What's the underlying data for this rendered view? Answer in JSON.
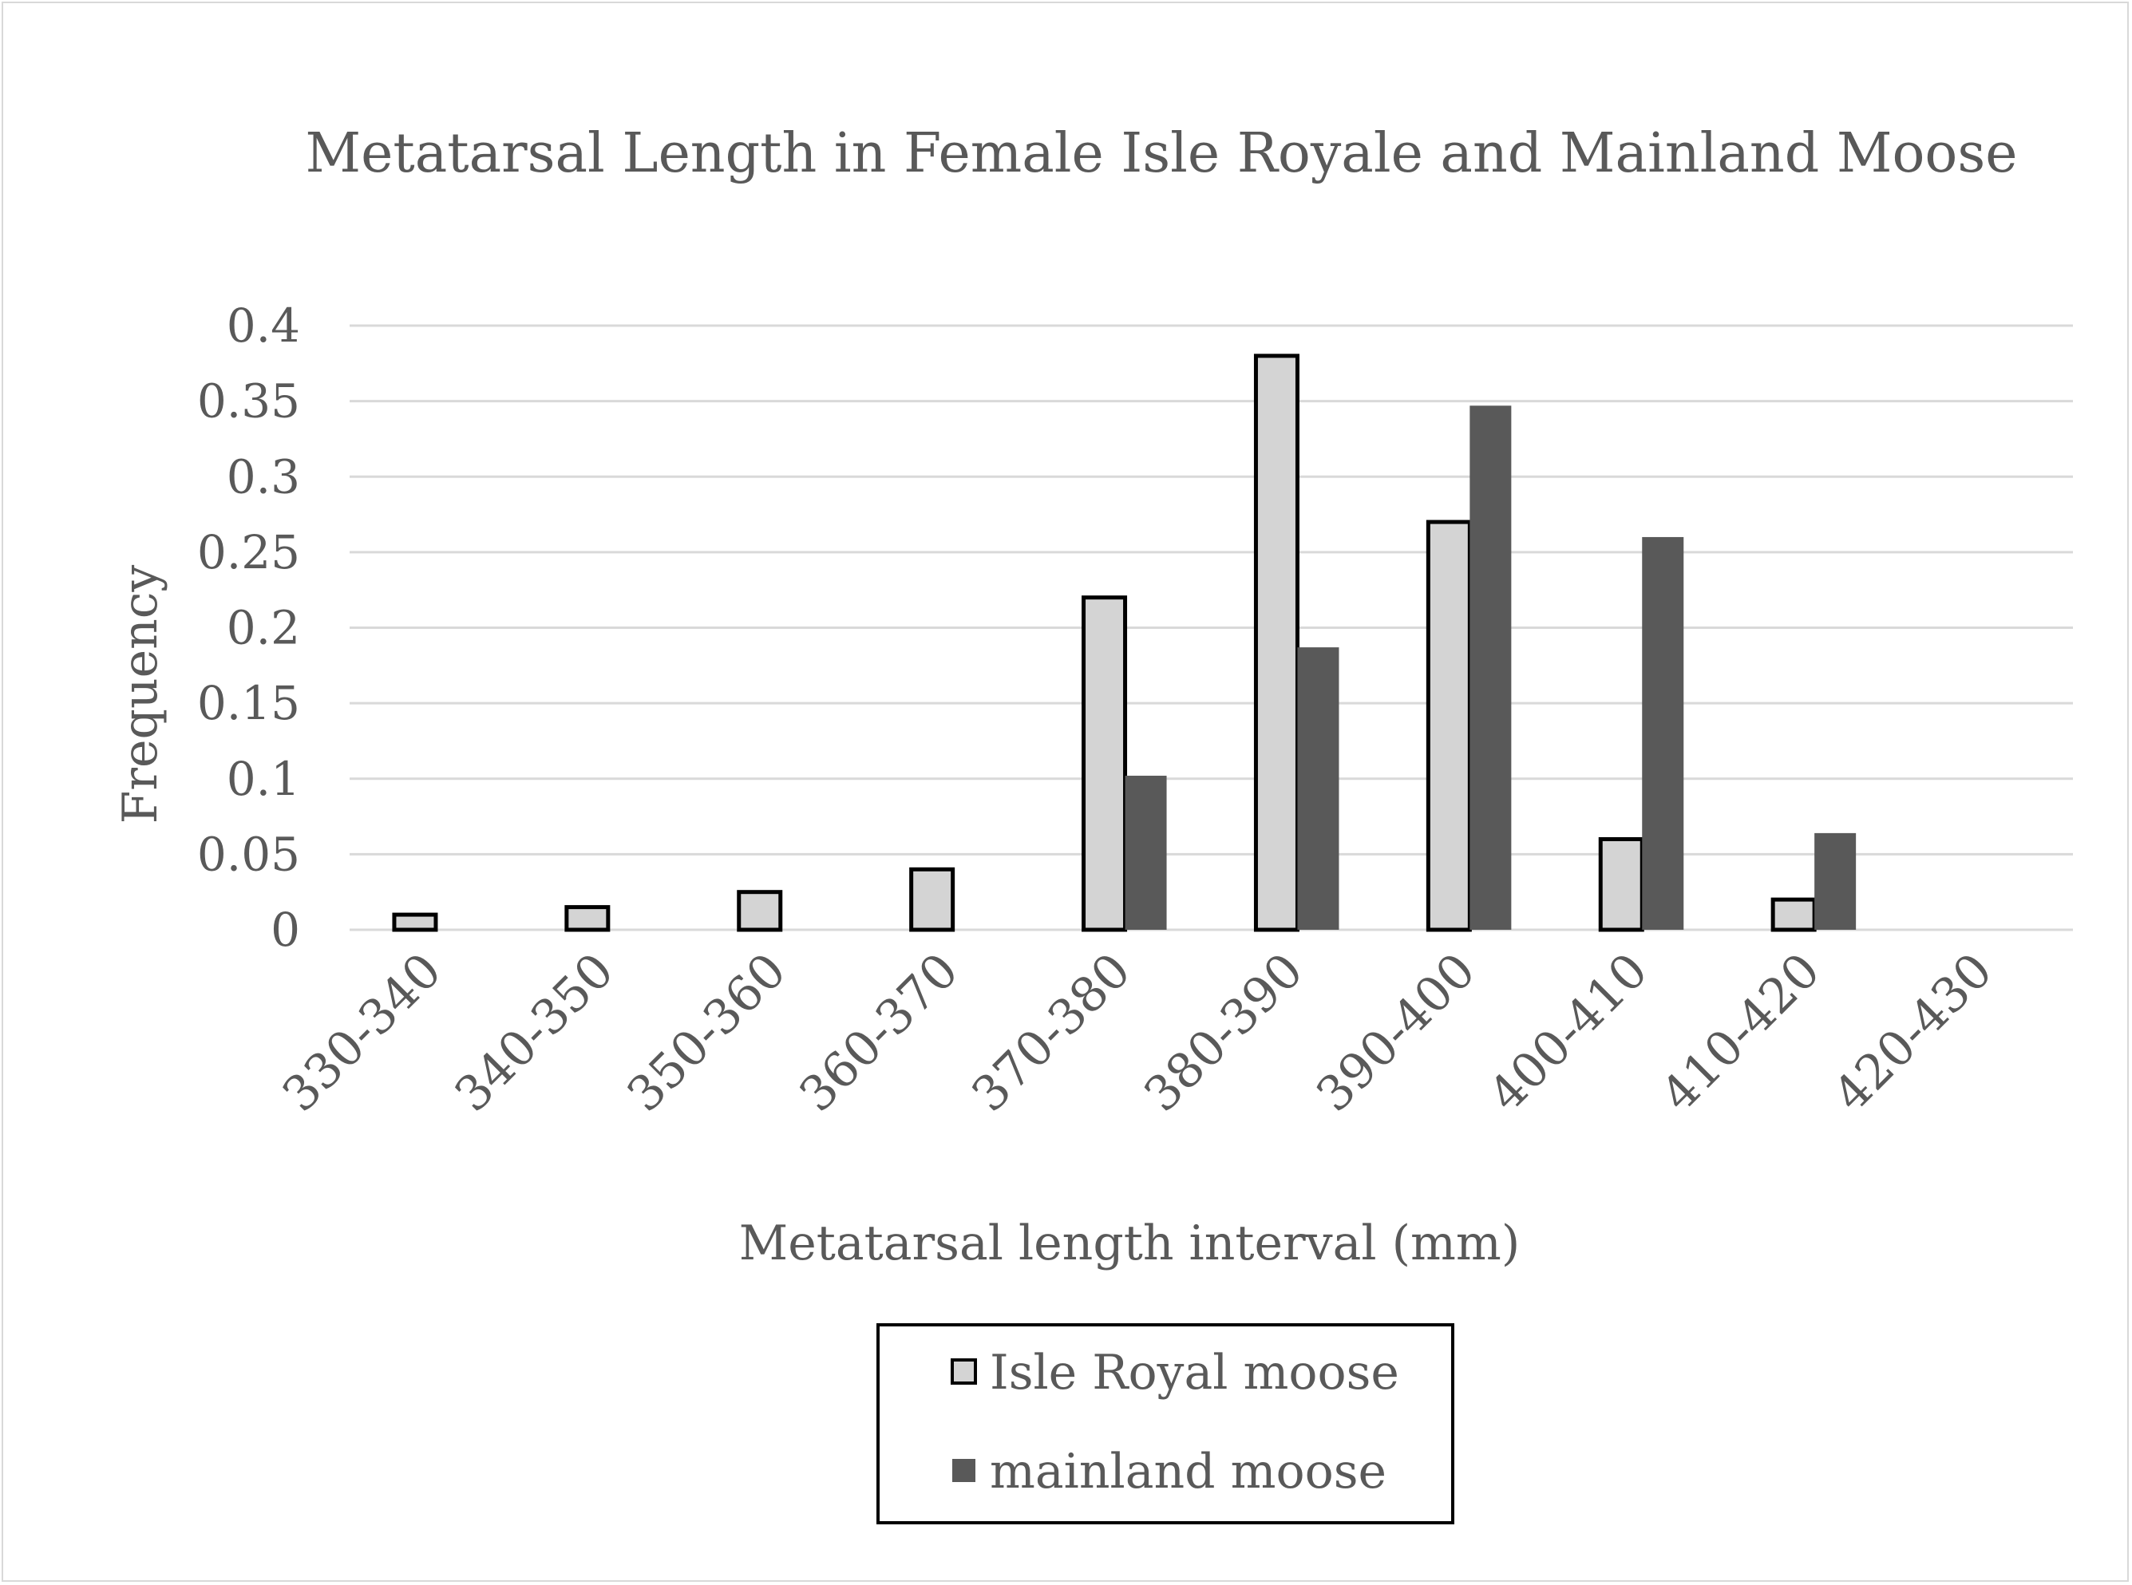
{
  "chart_data": {
    "type": "bar",
    "title": "Metatarsal Length in Female Isle Royale and Mainland Moose",
    "xlabel": "Metatarsal length interval (mm)",
    "ylabel": "Frequency",
    "categories": [
      "330-340",
      "340-350",
      "350-360",
      "360-370",
      "370-380",
      "380-390",
      "390-400",
      "400-410",
      "410-420",
      "420-430"
    ],
    "ylim": [
      0,
      0.4
    ],
    "yticks": [
      "0",
      "0.05",
      "0.1",
      "0.15",
      "0.2",
      "0.25",
      "0.3",
      "0.35",
      "0.4"
    ],
    "grid": true,
    "legend_position": "bottom",
    "series": [
      {
        "name": "Isle Royal moose",
        "values": [
          0.01,
          0.015,
          0.025,
          0.04,
          0.22,
          0.38,
          0.27,
          0.06,
          0.02,
          0
        ],
        "color": "#d4d4d4",
        "border": "#000000"
      },
      {
        "name": "mainland moose",
        "values": [
          0,
          0,
          0,
          0,
          0.102,
          0.187,
          0.347,
          0.26,
          0.064,
          0
        ],
        "color": "#595959"
      }
    ]
  }
}
